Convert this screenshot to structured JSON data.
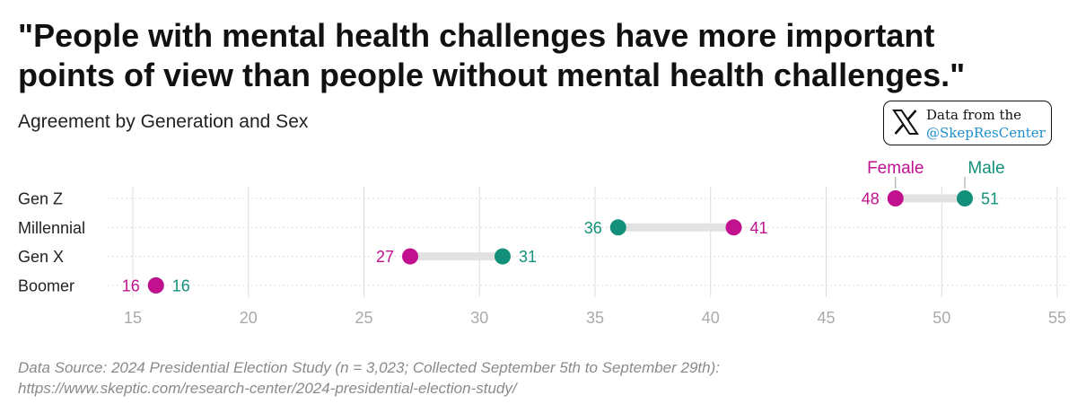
{
  "title": {
    "line1": "\"People with mental health challenges have more important",
    "line2": "points of view than people without mental health challenges.\""
  },
  "subtitle": "Agreement by Generation and Sex",
  "badge": {
    "icon": "x-logo-icon",
    "line1": "Data from the",
    "line2": "@SkepResCenter"
  },
  "source": {
    "line1": "Data Source: 2024 Presidential Election Study (n = 3,023; Collected September 5th to September 29th):",
    "line2": "https://www.skeptic.com/research-center/2024-presidential-election-study/"
  },
  "colors": {
    "female": "#c2118f",
    "male": "#13907a",
    "connector": "#e2e2e2",
    "grid": "#dcdcdc",
    "tick": "#aaaaaa"
  },
  "chart_data": {
    "type": "dumbbell",
    "title": "\"People with mental health challenges have more important points of view than people without mental health challenges.\"",
    "subtitle": "Agreement by Generation and Sex",
    "categories": [
      "Gen Z",
      "Millennial",
      "Gen X",
      "Boomer"
    ],
    "series": [
      {
        "name": "Female",
        "values": [
          48,
          41,
          27,
          16
        ]
      },
      {
        "name": "Male",
        "values": [
          51,
          36,
          31,
          16
        ]
      }
    ],
    "legend_labels": {
      "female": "Female",
      "male": "Male"
    },
    "xlim": [
      15,
      55
    ],
    "xticks": [
      15,
      20,
      25,
      30,
      35,
      40,
      45,
      50,
      55
    ],
    "xlabel": "",
    "ylabel": "",
    "grid": true
  }
}
